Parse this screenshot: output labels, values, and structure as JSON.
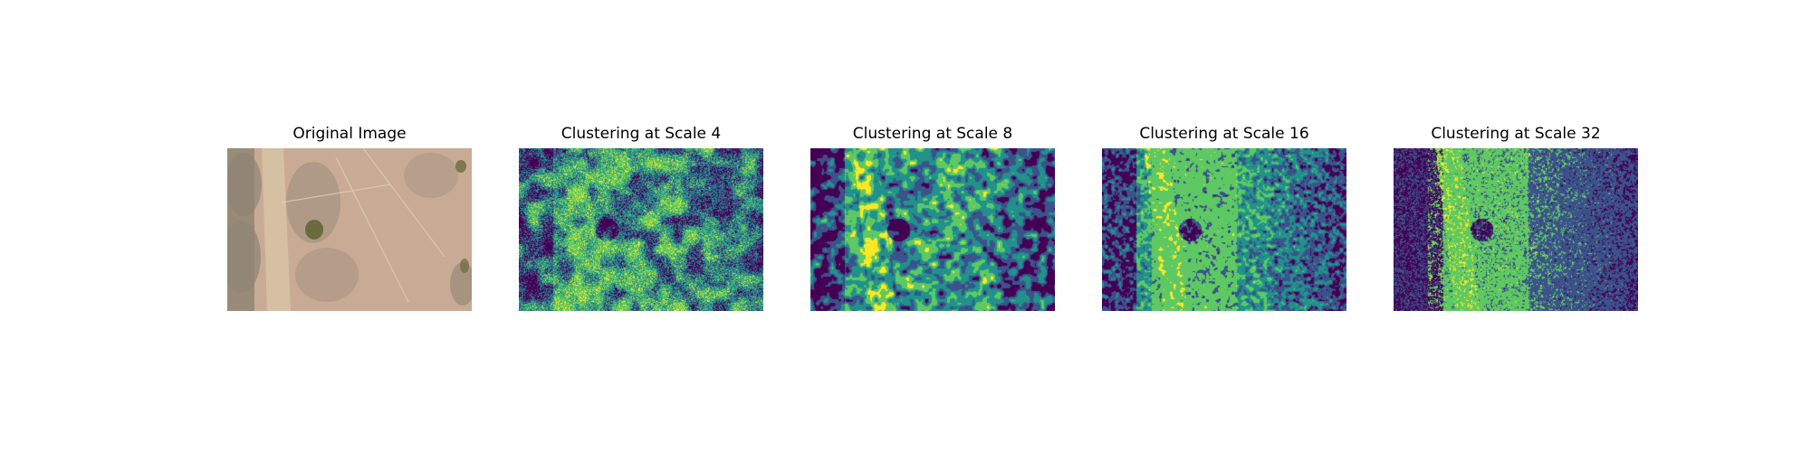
{
  "figure": {
    "panels": [
      {
        "title": "Original Image",
        "kind": "photo"
      },
      {
        "title": "Clustering at Scale 4",
        "kind": "clusters",
        "scale": 4
      },
      {
        "title": "Clustering at Scale 8",
        "kind": "clusters",
        "scale": 8
      },
      {
        "title": "Clustering at Scale 16",
        "kind": "clusters",
        "scale": 16
      },
      {
        "title": "Clustering at Scale 32",
        "kind": "clusters",
        "scale": 32
      }
    ],
    "cluster_colors": [
      "#440154",
      "#3b528b",
      "#21918c",
      "#5ec962",
      "#fde725"
    ],
    "photo_colors": {
      "base": "#c9ab95",
      "dark": "#8f8573",
      "bush": "#6b6a3c"
    }
  }
}
